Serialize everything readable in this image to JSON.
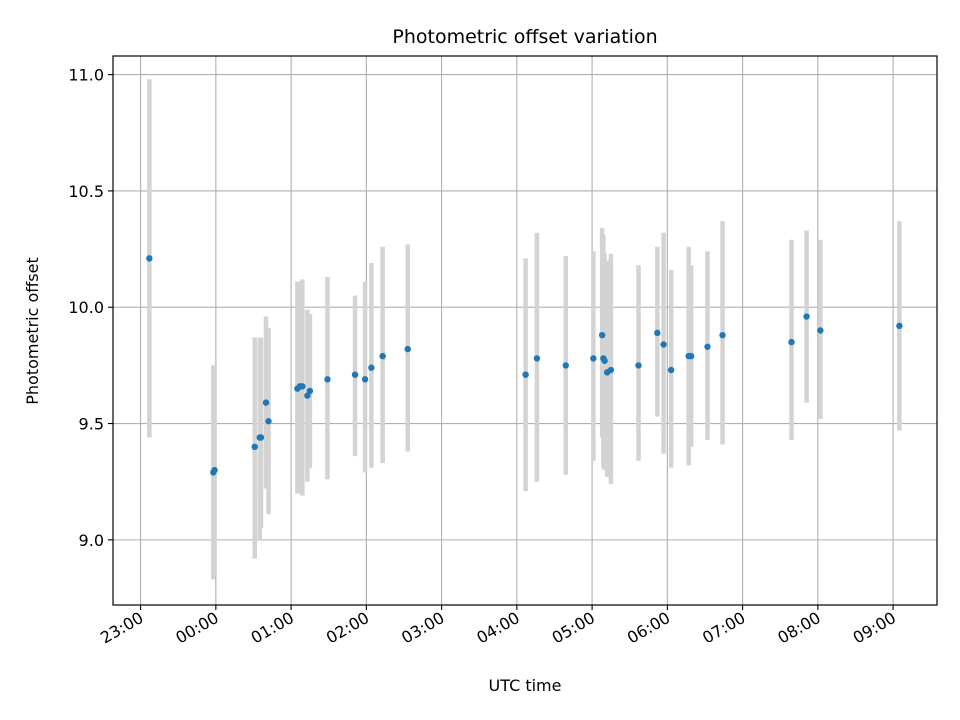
{
  "chart_data": {
    "type": "scatter",
    "title": "Photometric offset variation",
    "xlabel": "UTC time",
    "ylabel": "Photometric offset",
    "x_axis": "time",
    "x_start": "2023-01-01T22:38:00",
    "x_end": "2023-01-02T09:35:00",
    "xticks": [
      {
        "time": "2023-01-01T23:00:00",
        "label": "23:00"
      },
      {
        "time": "2023-01-02T00:00:00",
        "label": "00:00"
      },
      {
        "time": "2023-01-02T01:00:00",
        "label": "01:00"
      },
      {
        "time": "2023-01-02T02:00:00",
        "label": "02:00"
      },
      {
        "time": "2023-01-02T03:00:00",
        "label": "03:00"
      },
      {
        "time": "2023-01-02T04:00:00",
        "label": "04:00"
      },
      {
        "time": "2023-01-02T05:00:00",
        "label": "05:00"
      },
      {
        "time": "2023-01-02T06:00:00",
        "label": "06:00"
      },
      {
        "time": "2023-01-02T07:00:00",
        "label": "07:00"
      },
      {
        "time": "2023-01-02T08:00:00",
        "label": "08:00"
      },
      {
        "time": "2023-01-02T09:00:00",
        "label": "09:00"
      }
    ],
    "ylim": [
      8.72,
      11.08
    ],
    "yticks": [
      9.0,
      9.5,
      10.0,
      10.5,
      11.0
    ],
    "ytick_labels": [
      "9.0",
      "9.5",
      "10.0",
      "10.5",
      "11.0"
    ],
    "grid": true,
    "colors": {
      "point": "#1f77b4",
      "errorbar": "#d3d3d3",
      "grid": "#b0b0b0"
    },
    "points": [
      {
        "time": "2023-01-01T23:07:00",
        "y": 10.21,
        "yerr_low": 9.44,
        "yerr_high": 10.98
      },
      {
        "time": "2023-01-01T23:58:00",
        "y": 9.29,
        "yerr_low": 8.83,
        "yerr_high": 9.75
      },
      {
        "time": "2023-01-01T23:59:00",
        "y": 9.3,
        "yerr_low": 8.85,
        "yerr_high": 9.75
      },
      {
        "time": "2023-01-02T00:31:00",
        "y": 9.4,
        "yerr_low": 8.92,
        "yerr_high": 9.87
      },
      {
        "time": "2023-01-02T00:35:00",
        "y": 9.44,
        "yerr_low": 9.0,
        "yerr_high": 9.87
      },
      {
        "time": "2023-01-02T00:36:00",
        "y": 9.44,
        "yerr_low": 9.05,
        "yerr_high": 9.87
      },
      {
        "time": "2023-01-02T00:40:00",
        "y": 9.59,
        "yerr_low": 9.22,
        "yerr_high": 9.96
      },
      {
        "time": "2023-01-02T00:42:00",
        "y": 9.51,
        "yerr_low": 9.11,
        "yerr_high": 9.91
      },
      {
        "time": "2023-01-02T01:05:00",
        "y": 9.65,
        "yerr_low": 9.2,
        "yerr_high": 10.11
      },
      {
        "time": "2023-01-02T01:07:00",
        "y": 9.66,
        "yerr_low": 9.2,
        "yerr_high": 10.11
      },
      {
        "time": "2023-01-02T01:09:00",
        "y": 9.66,
        "yerr_low": 9.19,
        "yerr_high": 10.12
      },
      {
        "time": "2023-01-02T01:13:00",
        "y": 9.62,
        "yerr_low": 9.25,
        "yerr_high": 9.99
      },
      {
        "time": "2023-01-02T01:15:00",
        "y": 9.64,
        "yerr_low": 9.31,
        "yerr_high": 9.97
      },
      {
        "time": "2023-01-02T01:29:00",
        "y": 9.69,
        "yerr_low": 9.26,
        "yerr_high": 10.13
      },
      {
        "time": "2023-01-02T01:51:00",
        "y": 9.71,
        "yerr_low": 9.36,
        "yerr_high": 10.05
      },
      {
        "time": "2023-01-02T01:59:00",
        "y": 9.69,
        "yerr_low": 9.29,
        "yerr_high": 10.11
      },
      {
        "time": "2023-01-02T02:04:00",
        "y": 9.74,
        "yerr_low": 9.31,
        "yerr_high": 10.19
      },
      {
        "time": "2023-01-02T02:13:00",
        "y": 9.79,
        "yerr_low": 9.33,
        "yerr_high": 10.26
      },
      {
        "time": "2023-01-02T02:33:00",
        "y": 9.82,
        "yerr_low": 9.38,
        "yerr_high": 10.27
      },
      {
        "time": "2023-01-02T04:07:00",
        "y": 9.71,
        "yerr_low": 9.21,
        "yerr_high": 10.21
      },
      {
        "time": "2023-01-02T04:16:00",
        "y": 9.78,
        "yerr_low": 9.25,
        "yerr_high": 10.32
      },
      {
        "time": "2023-01-02T04:39:00",
        "y": 9.75,
        "yerr_low": 9.28,
        "yerr_high": 10.22
      },
      {
        "time": "2023-01-02T05:01:00",
        "y": 9.78,
        "yerr_low": 9.34,
        "yerr_high": 10.24
      },
      {
        "time": "2023-01-02T05:08:00",
        "y": 9.88,
        "yerr_low": 9.44,
        "yerr_high": 10.34
      },
      {
        "time": "2023-01-02T05:09:00",
        "y": 9.78,
        "yerr_low": 9.31,
        "yerr_high": 10.31
      },
      {
        "time": "2023-01-02T05:10:00",
        "y": 9.77,
        "yerr_low": 9.3,
        "yerr_high": 10.23
      },
      {
        "time": "2023-01-02T05:12:00",
        "y": 9.72,
        "yerr_low": 9.27,
        "yerr_high": 10.2
      },
      {
        "time": "2023-01-02T05:15:00",
        "y": 9.73,
        "yerr_low": 9.24,
        "yerr_high": 10.23
      },
      {
        "time": "2023-01-02T05:37:00",
        "y": 9.75,
        "yerr_low": 9.34,
        "yerr_high": 10.18
      },
      {
        "time": "2023-01-02T05:52:00",
        "y": 9.89,
        "yerr_low": 9.53,
        "yerr_high": 10.26
      },
      {
        "time": "2023-01-02T05:57:00",
        "y": 9.84,
        "yerr_low": 9.37,
        "yerr_high": 10.32
      },
      {
        "time": "2023-01-02T06:03:00",
        "y": 9.73,
        "yerr_low": 9.31,
        "yerr_high": 10.16
      },
      {
        "time": "2023-01-02T06:17:00",
        "y": 9.79,
        "yerr_low": 9.32,
        "yerr_high": 10.26
      },
      {
        "time": "2023-01-02T06:19:00",
        "y": 9.79,
        "yerr_low": 9.4,
        "yerr_high": 10.18
      },
      {
        "time": "2023-01-02T06:32:00",
        "y": 9.83,
        "yerr_low": 9.43,
        "yerr_high": 10.24
      },
      {
        "time": "2023-01-02T06:44:00",
        "y": 9.88,
        "yerr_low": 9.41,
        "yerr_high": 10.37
      },
      {
        "time": "2023-01-02T07:39:00",
        "y": 9.85,
        "yerr_low": 9.43,
        "yerr_high": 10.29
      },
      {
        "time": "2023-01-02T07:51:00",
        "y": 9.96,
        "yerr_low": 9.59,
        "yerr_high": 10.33
      },
      {
        "time": "2023-01-02T08:02:00",
        "y": 9.9,
        "yerr_low": 9.52,
        "yerr_high": 10.29
      },
      {
        "time": "2023-01-02T09:05:00",
        "y": 9.92,
        "yerr_low": 9.47,
        "yerr_high": 10.37
      }
    ]
  }
}
